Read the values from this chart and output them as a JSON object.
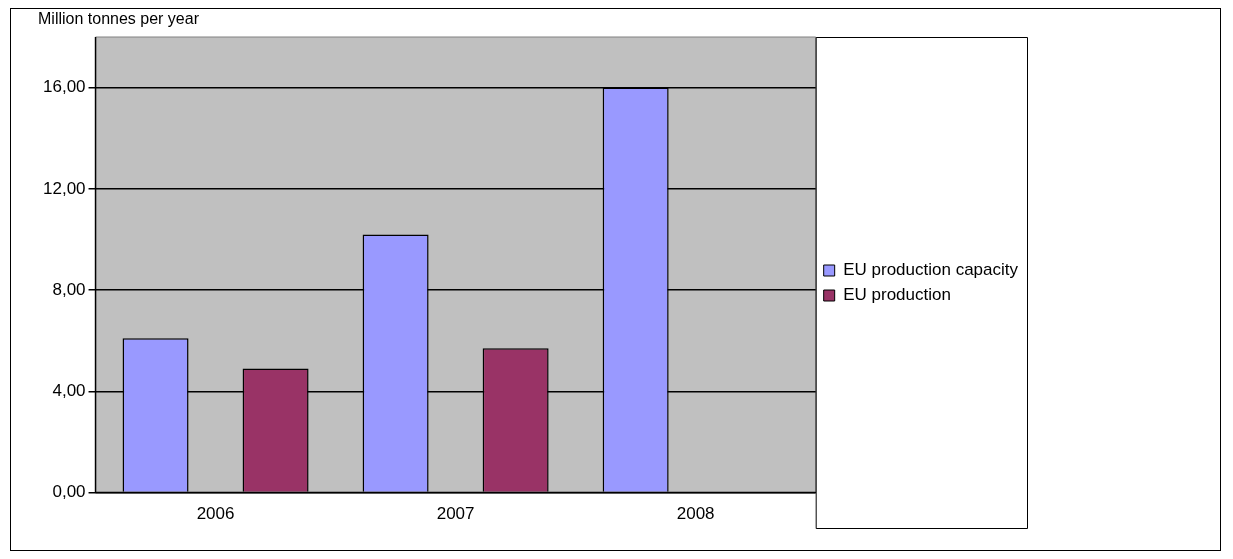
{
  "chart_data": {
    "type": "bar",
    "ylabel": "Million tonnes per year",
    "categories": [
      "2006",
      "2007",
      "2008"
    ],
    "series": [
      {
        "name": "EU production capacity",
        "color": "#9999ff",
        "values": [
          6.1,
          10.2,
          16
        ]
      },
      {
        "name": "EU production",
        "color": "#993366",
        "values": [
          4.9,
          5.7,
          null
        ]
      }
    ],
    "ylim": [
      0,
      18
    ],
    "yticks": [
      {
        "value": 0,
        "label": "0,00"
      },
      {
        "value": 4,
        "label": "4,00"
      },
      {
        "value": 8,
        "label": "8,00"
      },
      {
        "value": 12,
        "label": "12,00"
      },
      {
        "value": 16,
        "label": "16,00"
      }
    ],
    "grid": "y",
    "legend": "right"
  }
}
